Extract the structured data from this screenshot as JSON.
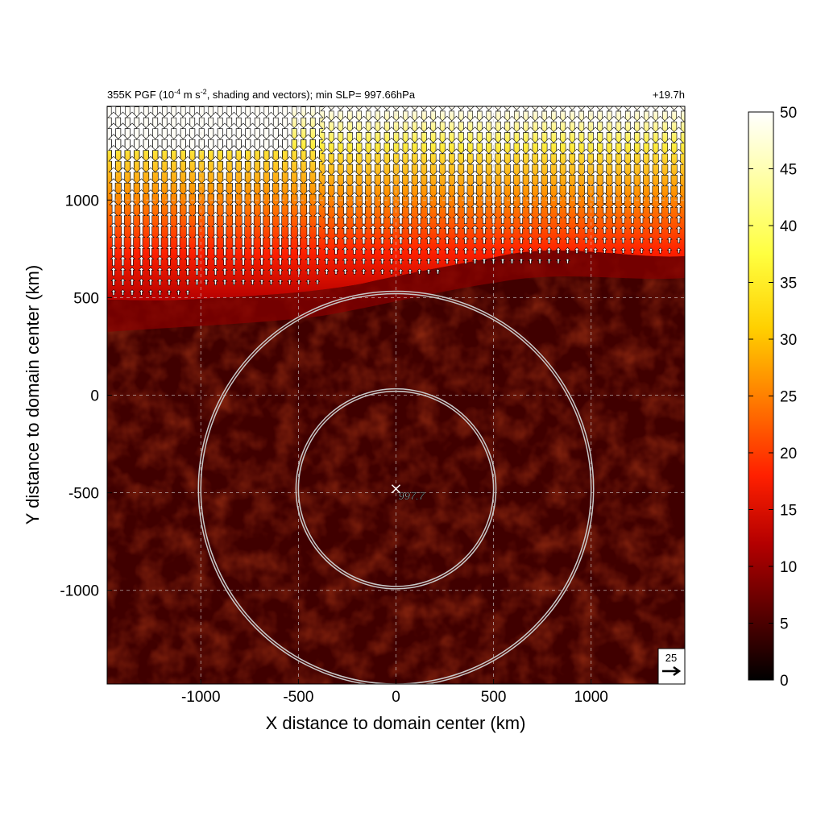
{
  "chart_data": {
    "type": "heatmap",
    "title": {
      "prefix": "355K PGF (10",
      "exp": "-4",
      "mid": " m s",
      "exp2": "-2",
      "suffix": ", shading and vectors); min SLP= 997.66hPa"
    },
    "time_label": "+19.7h",
    "xlabel": "X distance to domain center (km)",
    "ylabel": "Y distance to domain center (km)",
    "xlim": [
      -1480,
      1480
    ],
    "ylim": [
      -1480,
      1480
    ],
    "xticks": [
      -1000,
      -500,
      0,
      500,
      1000
    ],
    "yticks": [
      1000,
      500,
      0,
      -500,
      -1000
    ],
    "grid": true,
    "colorbar": {
      "min": 0,
      "max": 50,
      "ticks": [
        50,
        45,
        40,
        35,
        30,
        25,
        20,
        15,
        10,
        5,
        0
      ],
      "colormap": [
        "#000000",
        "#5a0000",
        "#b40000",
        "#ff2000",
        "#ff8000",
        "#ffd000",
        "#ffff40",
        "#ffffff"
      ]
    },
    "center": {
      "x": 0,
      "y": -480,
      "label": "997.7",
      "marker": "x"
    },
    "rings": [
      {
        "radius_km": 500,
        "color": "#c8c8c8"
      },
      {
        "radius_km": 1000,
        "color": "#c8c8c8"
      }
    ],
    "field_description_bands": [
      {
        "region": "north",
        "y_from": 580,
        "y_to": 1480,
        "value_range": [
          15,
          50
        ]
      },
      {
        "region": "south",
        "y_from": -1480,
        "y_to": 580,
        "value_range": [
          0,
          12
        ]
      }
    ],
    "vector_reference": {
      "value": 25,
      "label": "25"
    }
  }
}
